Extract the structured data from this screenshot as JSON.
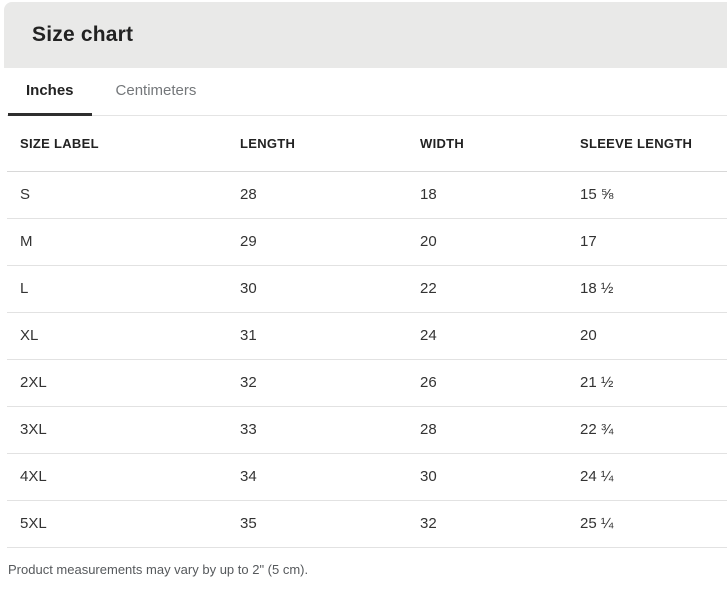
{
  "header": {
    "title": "Size chart"
  },
  "tabs": {
    "inches": {
      "label": "Inches",
      "active": true
    },
    "centimeters": {
      "label": "Centimeters",
      "active": false
    }
  },
  "table": {
    "columns": {
      "size": "SIZE LABEL",
      "length": "LENGTH",
      "width": "WIDTH",
      "sleeve": "SLEEVE LENGTH"
    },
    "unit": "inches",
    "rows": [
      {
        "size": "S",
        "length": "28",
        "width": "18",
        "sleeve": "15 ⅝"
      },
      {
        "size": "M",
        "length": "29",
        "width": "20",
        "sleeve": "17"
      },
      {
        "size": "L",
        "length": "30",
        "width": "22",
        "sleeve": "18 ½"
      },
      {
        "size": "XL",
        "length": "31",
        "width": "24",
        "sleeve": "20"
      },
      {
        "size": "2XL",
        "length": "32",
        "width": "26",
        "sleeve": "21 ½"
      },
      {
        "size": "3XL",
        "length": "33",
        "width": "28",
        "sleeve": "22 ¾"
      },
      {
        "size": "4XL",
        "length": "34",
        "width": "30",
        "sleeve": "24 ¼"
      },
      {
        "size": "5XL",
        "length": "35",
        "width": "32",
        "sleeve": "25 ¼"
      }
    ]
  },
  "footer": {
    "note": "Product measurements may vary by up to 2\" (5 cm)."
  },
  "colors": {
    "header_bg": "#e9e9e8",
    "accent_text": "#222222",
    "muted_text": "#74777a",
    "underline": "#2f2f2f",
    "divider": "#e2e2e2",
    "divider_light": "#e4e4e4",
    "divider_strong": "#d8d8d8",
    "footer_text": "#56595c"
  }
}
